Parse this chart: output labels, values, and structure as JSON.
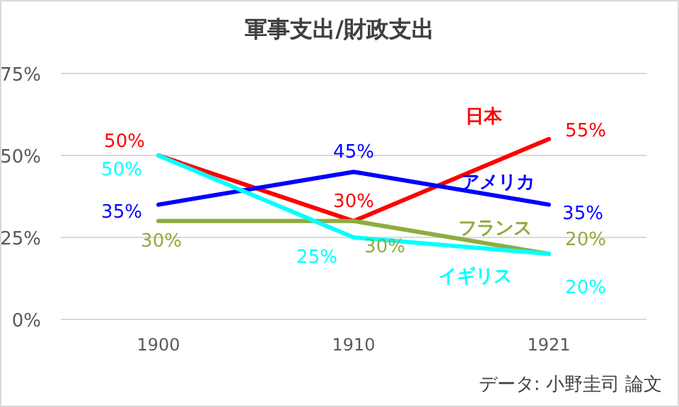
{
  "chart_data": {
    "type": "line",
    "title": "軍事支出/財政支出",
    "categories": [
      "1900",
      "1910",
      "1921"
    ],
    "series": [
      {
        "name": "日本",
        "color": "#ff0000",
        "values": [
          50,
          30,
          55
        ],
        "value_labels": [
          "50%",
          "30%",
          "55%"
        ]
      },
      {
        "name": "アメリカ",
        "color": "#0000ff",
        "values": [
          35,
          45,
          35
        ],
        "value_labels": [
          "35%",
          "45%",
          "35%"
        ]
      },
      {
        "name": "フランス",
        "color": "#8fac3f",
        "values": [
          30,
          30,
          20
        ],
        "value_labels": [
          "30%",
          "30%",
          "20%"
        ]
      },
      {
        "name": "イギリス",
        "color": "#00ffff",
        "values": [
          50,
          25,
          20
        ],
        "value_labels": [
          "50%",
          "25%",
          "20%"
        ]
      }
    ],
    "ylim": [
      0,
      75
    ],
    "yticks": [
      {
        "value": 0,
        "label": "0%"
      },
      {
        "value": 25,
        "label": "25%"
      },
      {
        "value": 50,
        "label": "50%"
      },
      {
        "value": 75,
        "label": "75%"
      }
    ],
    "grid": "y",
    "legend": false,
    "marker": "none",
    "line_style": "solid",
    "annotations": [
      "データ: 小野圭司 論文"
    ]
  }
}
